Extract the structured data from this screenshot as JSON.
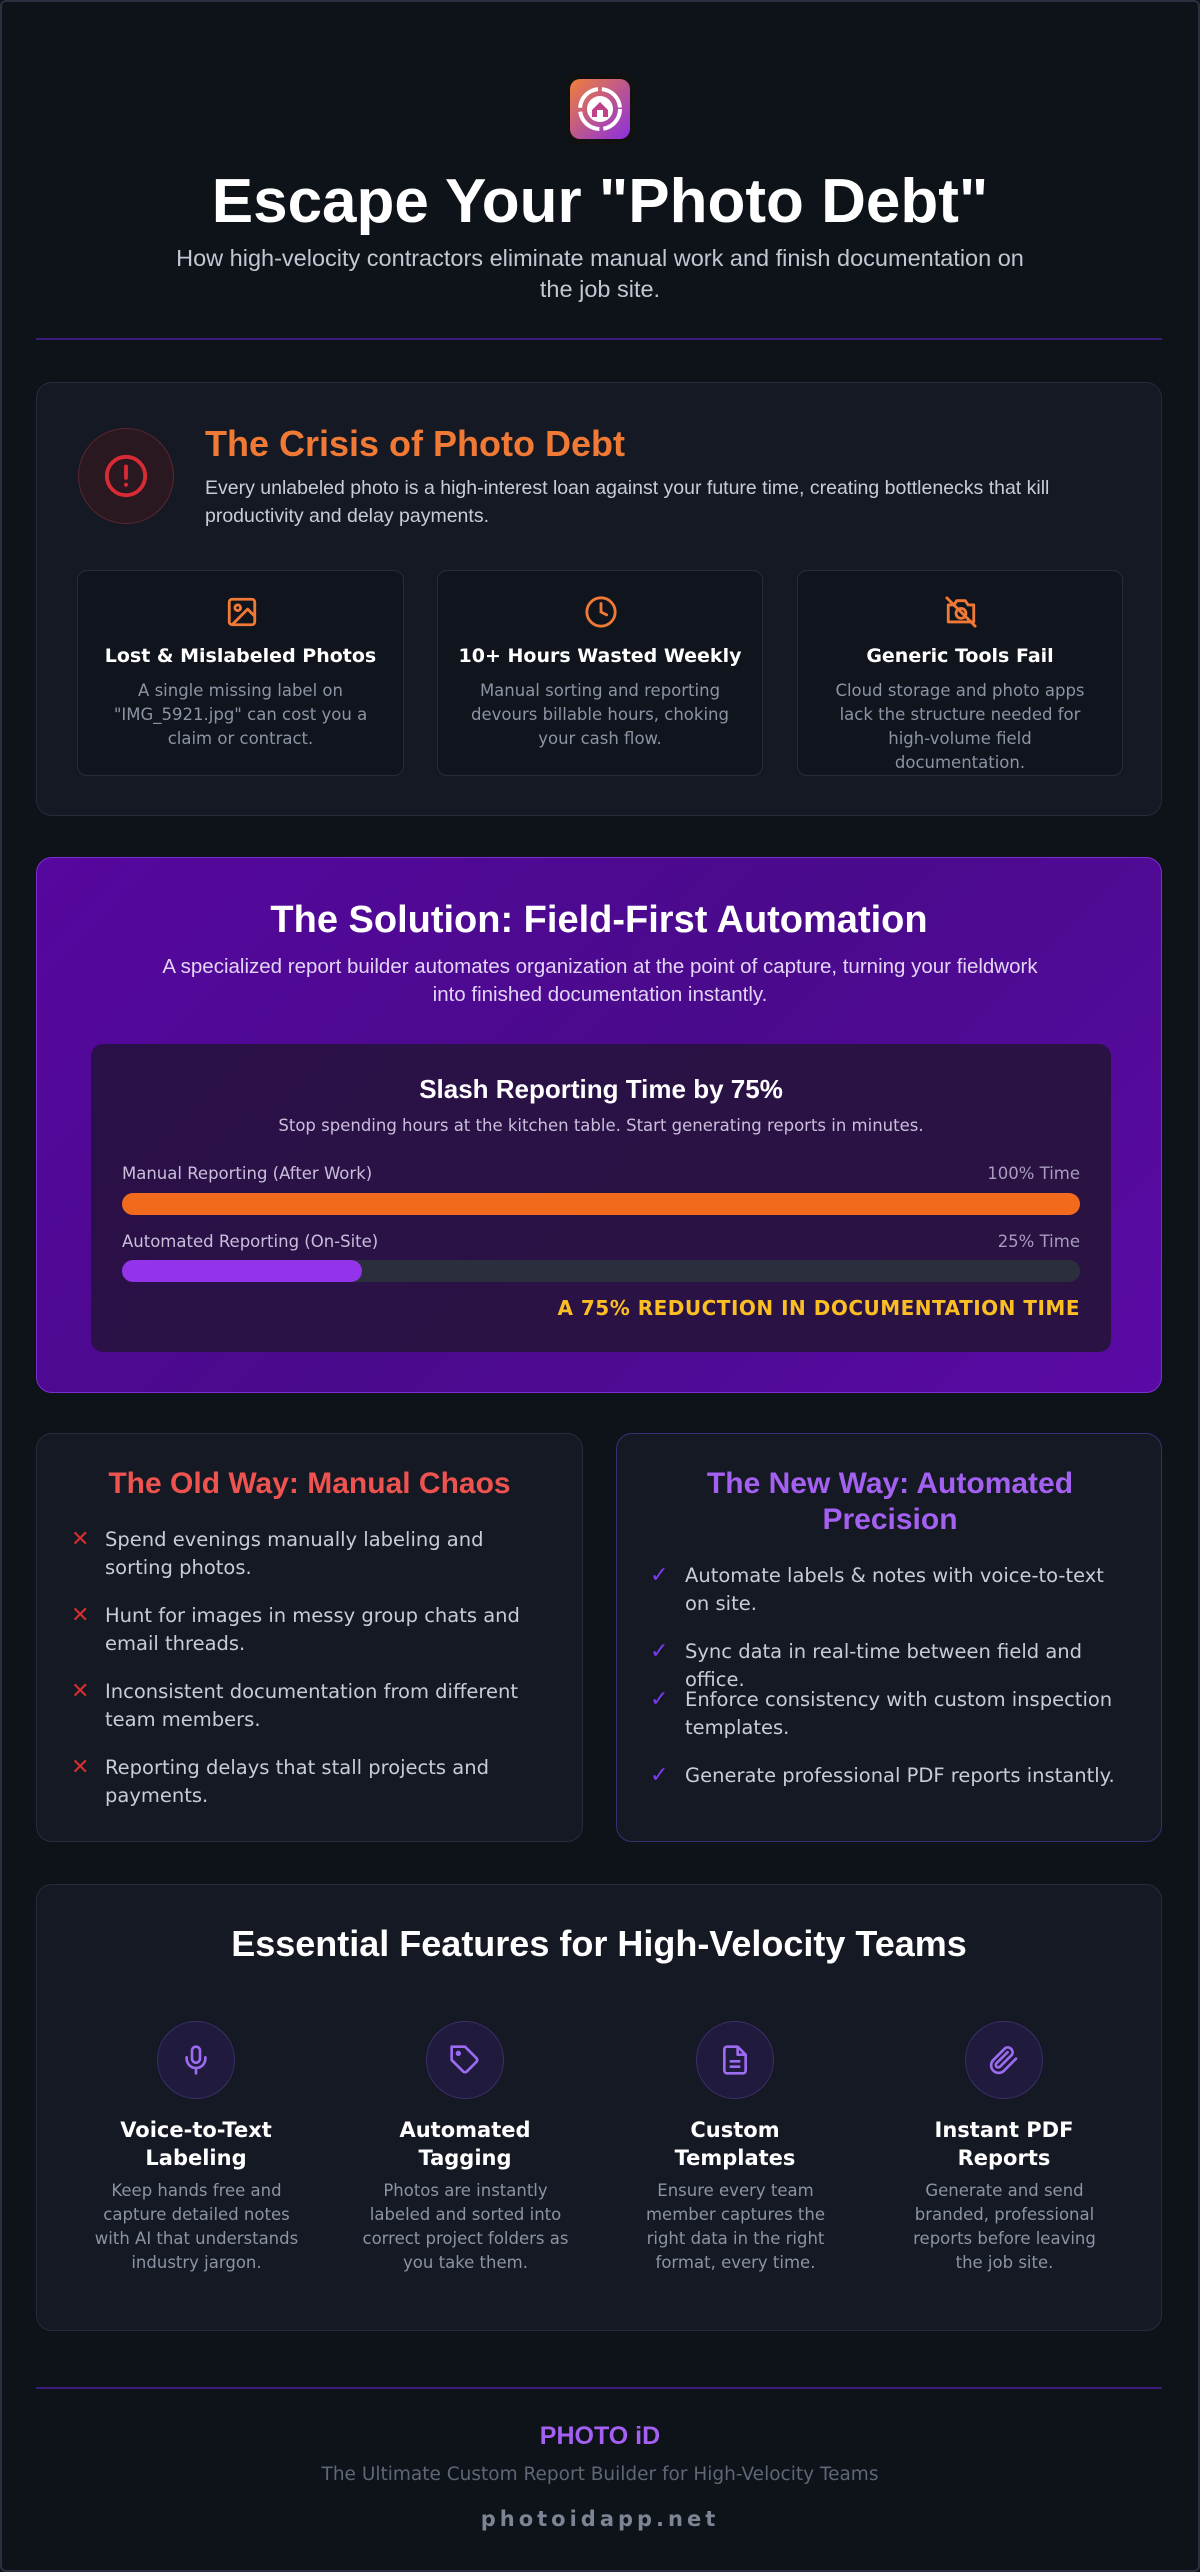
{
  "header": {
    "title": "Escape Your \"Photo Debt\"",
    "subtitle": "How high-velocity contractors eliminate manual work and finish documentation on the job site."
  },
  "crisis": {
    "title": "The Crisis of Photo Debt",
    "text": "Every unlabeled photo is a high-interest loan against your future time, creating bottlenecks that kill productivity and delay payments.",
    "cards": [
      {
        "title": "Lost & Mislabeled Photos",
        "text": "A single missing label on \"IMG_5921.jpg\" can cost you a claim or contract."
      },
      {
        "title": "10+ Hours Wasted Weekly",
        "text": "Manual sorting and reporting devours billable hours, choking your cash flow."
      },
      {
        "title": "Generic Tools Fail",
        "text": "Cloud storage and photo apps lack the structure needed for high-volume field documentation."
      }
    ]
  },
  "solution": {
    "title": "The Solution: Field-First Automation",
    "text": "A specialized report builder automates organization at the point of capture, turning your fieldwork into finished documentation instantly.",
    "comparison": {
      "title": "Slash Reporting Time by 75%",
      "subtitle": "Stop spending hours at the kitchen table. Start generating reports in minutes.",
      "rows": [
        {
          "label": "Manual Reporting (After Work)",
          "value": "100% Time"
        },
        {
          "label": "Automated Reporting (On-Site)",
          "value": "25% Time"
        }
      ],
      "callout": "A 75% REDUCTION IN DOCUMENTATION TIME"
    }
  },
  "old_way": {
    "title": "The Old Way: Manual Chaos",
    "items": [
      "Spend evenings manually labeling and sorting photos.",
      "Hunt for images in messy group chats and email threads.",
      "Inconsistent documentation from different team members.",
      "Reporting delays that stall projects and payments."
    ]
  },
  "new_way": {
    "title": "The New Way: Automated Precision",
    "items": [
      "Automate labels & notes with voice-to-text on site.",
      "Sync data in real-time between field and office.",
      "Enforce consistency with custom inspection templates.",
      "Generate professional PDF reports instantly."
    ]
  },
  "features": {
    "title": "Essential Features for High-Velocity Teams",
    "items": [
      {
        "title": "Voice-to-Text Labeling",
        "text": "Keep hands free and capture detailed notes with AI that understands industry jargon."
      },
      {
        "title": "Automated Tagging",
        "text": "Photos are instantly labeled and sorted into correct project folders as you take them."
      },
      {
        "title": "Custom Templates",
        "text": "Ensure every team member captures the right data in the right format, every time."
      },
      {
        "title": "Instant PDF Reports",
        "text": "Generate and send branded, professional reports before leaving the job site."
      }
    ]
  },
  "footer": {
    "brand": "PHOTO iD",
    "tagline": "The Ultimate Custom Report Builder for High-Velocity Teams",
    "url": "photoidapp.net"
  }
}
